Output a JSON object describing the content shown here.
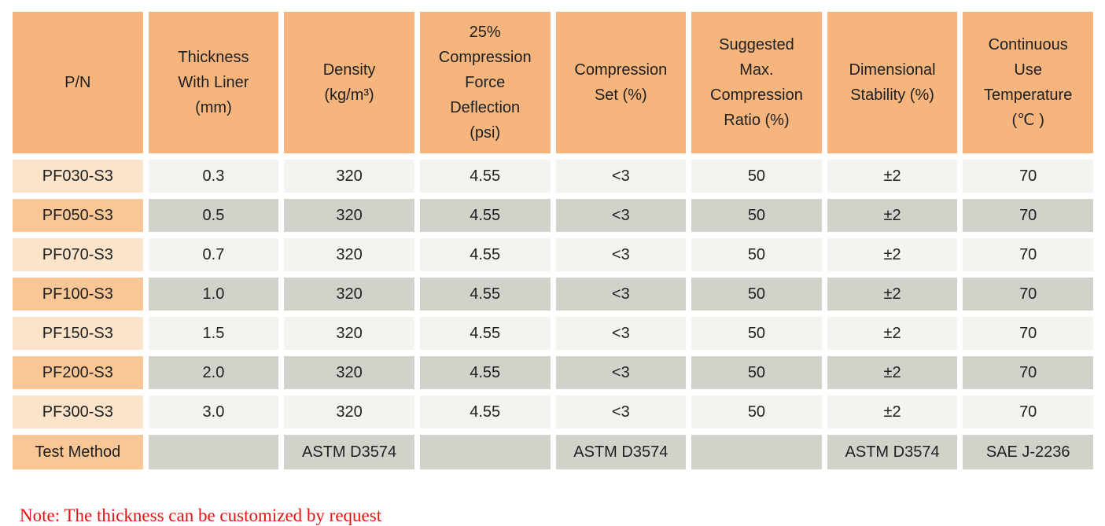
{
  "colors": {
    "header_bg": "#f5b57d",
    "pn_cell_light": "#fce4cb",
    "pn_cell_dark": "#f9c795",
    "data_cell_light": "#f3f3ef",
    "data_cell_dark": "#d2d2cb",
    "note_text": "#e51414",
    "page_bg": "#ffffff",
    "text": "#1f1f1f"
  },
  "table": {
    "columns": [
      {
        "id": "pn",
        "label": "P/N"
      },
      {
        "id": "thickness",
        "label": "Thickness\nWith Liner\n(mm)"
      },
      {
        "id": "density",
        "label": "Density\n(kg/m³)"
      },
      {
        "id": "cfd",
        "label": "25%\nCompression\nForce\nDeflection\n(psi)"
      },
      {
        "id": "compression-set",
        "label": "Compression\nSet (%)"
      },
      {
        "id": "max-compression-ratio",
        "label": "Suggested\nMax.\nCompression\nRatio (%)"
      },
      {
        "id": "dimensional-stability",
        "label": "Dimensional\nStability (%)"
      },
      {
        "id": "temperature",
        "label": "Continuous\nUse\nTemperature\n(℃ )"
      }
    ],
    "rows": [
      {
        "pn": "PF030-S3",
        "values": [
          "0.3",
          "320",
          "4.55",
          "<3",
          "50",
          "±2",
          "70"
        ]
      },
      {
        "pn": "PF050-S3",
        "values": [
          "0.5",
          "320",
          "4.55",
          "<3",
          "50",
          "±2",
          "70"
        ]
      },
      {
        "pn": "PF070-S3",
        "values": [
          "0.7",
          "320",
          "4.55",
          "<3",
          "50",
          "±2",
          "70"
        ]
      },
      {
        "pn": "PF100-S3",
        "values": [
          "1.0",
          "320",
          "4.55",
          "<3",
          "50",
          "±2",
          "70"
        ]
      },
      {
        "pn": "PF150-S3",
        "values": [
          "1.5",
          "320",
          "4.55",
          "<3",
          "50",
          "±2",
          "70"
        ]
      },
      {
        "pn": "PF200-S3",
        "values": [
          "2.0",
          "320",
          "4.55",
          "<3",
          "50",
          "±2",
          "70"
        ]
      },
      {
        "pn": "PF300-S3",
        "values": [
          "3.0",
          "320",
          "4.55",
          "<3",
          "50",
          "±2",
          "70"
        ]
      }
    ],
    "test_method_row": {
      "label": "Test Method",
      "values": [
        "",
        "ASTM D3574",
        "",
        "ASTM D3574",
        "",
        "ASTM D3574",
        "SAE J-2236"
      ]
    }
  },
  "note": "Note: The thickness can be customized by request"
}
